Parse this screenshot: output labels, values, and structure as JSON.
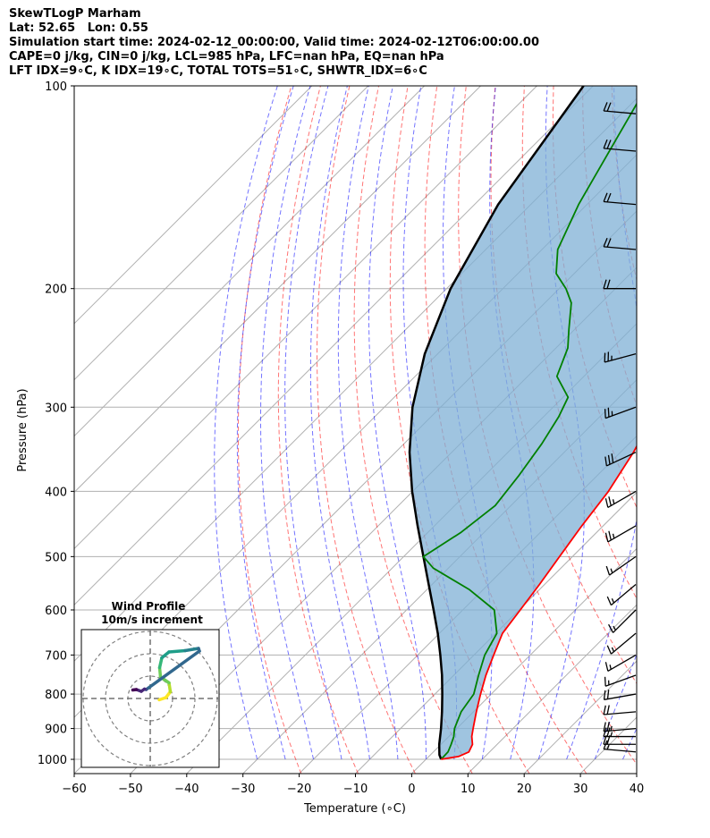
{
  "header": {
    "line1": "SkewTLogP Marham",
    "line2": "Lat: 52.65   Lon: 0.55",
    "line3": "Simulation start time: 2024-02-12_00:00:00, Valid time: 2024-02-12T06:00:00.00",
    "line4": "CAPE=0 j/kg, CIN=0 j/kg, LCL=985 hPa, LFC=nan hPa, EQ=nan hPa",
    "line5": "LFT IDX=9∘C, K IDX=19∘C, TOTAL TOTS=51∘C, SHWTR_IDX=6∘C"
  },
  "chart_data": {
    "type": "line",
    "diagram": "skew-T log-P",
    "xlabel": "Temperature (∘C)",
    "ylabel": "Pressure (hPa)",
    "xlim": [
      -60,
      40
    ],
    "ylim": [
      1050,
      100
    ],
    "y_scale": "log",
    "grid": true,
    "x_ticks": [
      -60,
      -50,
      -40,
      -30,
      -20,
      -10,
      0,
      10,
      20,
      30,
      40
    ],
    "y_ticks": [
      1000,
      900,
      800,
      700,
      600,
      500,
      400,
      300,
      200,
      100
    ],
    "series": [
      {
        "key": "temperature",
        "color": "#ff0000",
        "points": [
          [
            1000,
            2.7
          ],
          [
            990,
            5.3
          ],
          [
            975,
            6.3
          ],
          [
            950,
            5.6
          ],
          [
            925,
            4.1
          ],
          [
            900,
            2.9
          ],
          [
            850,
            0.5
          ],
          [
            800,
            -1.9
          ],
          [
            750,
            -4.3
          ],
          [
            700,
            -6.5
          ],
          [
            650,
            -8.8
          ],
          [
            600,
            -9.8
          ],
          [
            550,
            -10.9
          ],
          [
            500,
            -12.3
          ],
          [
            450,
            -13.8
          ],
          [
            400,
            -15.2
          ],
          [
            350,
            -17.7
          ],
          [
            320,
            -19.8
          ],
          [
            300,
            -19.3
          ],
          [
            280,
            -18.7
          ],
          [
            250,
            -17.1
          ],
          [
            230,
            -14.7
          ],
          [
            210,
            -12.5
          ],
          [
            200,
            -13.9
          ],
          [
            180,
            -17.5
          ],
          [
            160,
            -22.3
          ],
          [
            140,
            -28.2
          ],
          [
            120,
            -36.6
          ],
          [
            100,
            -46.1
          ]
        ]
      },
      {
        "key": "dewpoint",
        "color": "#008000",
        "points": [
          [
            1000,
            2.7
          ],
          [
            975,
            2.6
          ],
          [
            950,
            1.8
          ],
          [
            925,
            0.9
          ],
          [
            900,
            -0.4
          ],
          [
            850,
            -2.2
          ],
          [
            800,
            -3.1
          ],
          [
            750,
            -5.6
          ],
          [
            700,
            -8.1
          ],
          [
            650,
            -9.8
          ],
          [
            600,
            -14.4
          ],
          [
            560,
            -22.4
          ],
          [
            520,
            -32.7
          ],
          [
            500,
            -36.5
          ],
          [
            460,
            -34.1
          ],
          [
            420,
            -32.8
          ],
          [
            380,
            -33.9
          ],
          [
            340,
            -35.5
          ],
          [
            310,
            -37.3
          ],
          [
            290,
            -39.1
          ],
          [
            270,
            -44.8
          ],
          [
            245,
            -47.9
          ],
          [
            230,
            -51.0
          ],
          [
            210,
            -55.3
          ],
          [
            200,
            -58.8
          ],
          [
            190,
            -63.2
          ],
          [
            175,
            -67.2
          ],
          [
            150,
            -71.5
          ],
          [
            120,
            -76.4
          ],
          [
            100,
            -80.4
          ]
        ]
      },
      {
        "key": "parcel",
        "color": "#000000",
        "points": [
          [
            1000,
            2.7
          ],
          [
            985,
            1.6
          ],
          [
            950,
            -0.3
          ],
          [
            900,
            -2.8
          ],
          [
            850,
            -5.6
          ],
          [
            800,
            -8.7
          ],
          [
            750,
            -12.1
          ],
          [
            700,
            -16.0
          ],
          [
            650,
            -20.3
          ],
          [
            600,
            -25.2
          ],
          [
            550,
            -30.6
          ],
          [
            500,
            -36.5
          ],
          [
            450,
            -43.0
          ],
          [
            400,
            -50.1
          ],
          [
            350,
            -57.5
          ],
          [
            300,
            -65.0
          ],
          [
            250,
            -72.3
          ],
          [
            200,
            -79.3
          ],
          [
            150,
            -85.8
          ],
          [
            100,
            -91.7
          ]
        ]
      }
    ],
    "wind_barbs_note": "westerly winds at all levels",
    "wind_barbs": [
      {
        "p": 975,
        "speed_kt": 15,
        "dir": 275
      },
      {
        "p": 950,
        "speed_kt": 20,
        "dir": 270
      },
      {
        "p": 925,
        "speed_kt": 25,
        "dir": 270
      },
      {
        "p": 900,
        "speed_kt": 25,
        "dir": 265
      },
      {
        "p": 850,
        "speed_kt": 20,
        "dir": 265
      },
      {
        "p": 800,
        "speed_kt": 20,
        "dir": 260
      },
      {
        "p": 750,
        "speed_kt": 15,
        "dir": 250
      },
      {
        "p": 700,
        "speed_kt": 15,
        "dir": 240
      },
      {
        "p": 650,
        "speed_kt": 15,
        "dir": 230
      },
      {
        "p": 600,
        "speed_kt": 15,
        "dir": 225
      },
      {
        "p": 550,
        "speed_kt": 15,
        "dir": 230
      },
      {
        "p": 500,
        "speed_kt": 15,
        "dir": 235
      },
      {
        "p": 450,
        "speed_kt": 25,
        "dir": 240
      },
      {
        "p": 400,
        "speed_kt": 25,
        "dir": 240
      },
      {
        "p": 350,
        "speed_kt": 30,
        "dir": 245
      },
      {
        "p": 300,
        "speed_kt": 25,
        "dir": 250
      },
      {
        "p": 250,
        "speed_kt": 25,
        "dir": 255
      },
      {
        "p": 200,
        "speed_kt": 20,
        "dir": 270
      },
      {
        "p": 175,
        "speed_kt": 20,
        "dir": 275
      },
      {
        "p": 150,
        "speed_kt": 20,
        "dir": 275
      },
      {
        "p": 125,
        "speed_kt": 20,
        "dir": 275
      },
      {
        "p": 110,
        "speed_kt": 20,
        "dir": 275
      }
    ],
    "inset": {
      "title": "Wind Profile",
      "subtitle": "10m/s increment",
      "hodograph": [
        [
          2.0,
          -0.3
        ],
        [
          3.5,
          0.2
        ],
        [
          4.5,
          1.5
        ],
        [
          4.2,
          3.5
        ],
        [
          2.3,
          4.8
        ],
        [
          2.1,
          6.9
        ],
        [
          2.6,
          9.1
        ],
        [
          4.2,
          10.4
        ],
        [
          7.8,
          10.7
        ],
        [
          10.8,
          11.2
        ],
        [
          11.0,
          10.6
        ],
        [
          -0.9,
          2.0
        ],
        [
          -1.3,
          2.1
        ],
        [
          -2.0,
          1.6
        ],
        [
          -3.1,
          2.0
        ],
        [
          -3.9,
          1.9
        ]
      ]
    }
  }
}
